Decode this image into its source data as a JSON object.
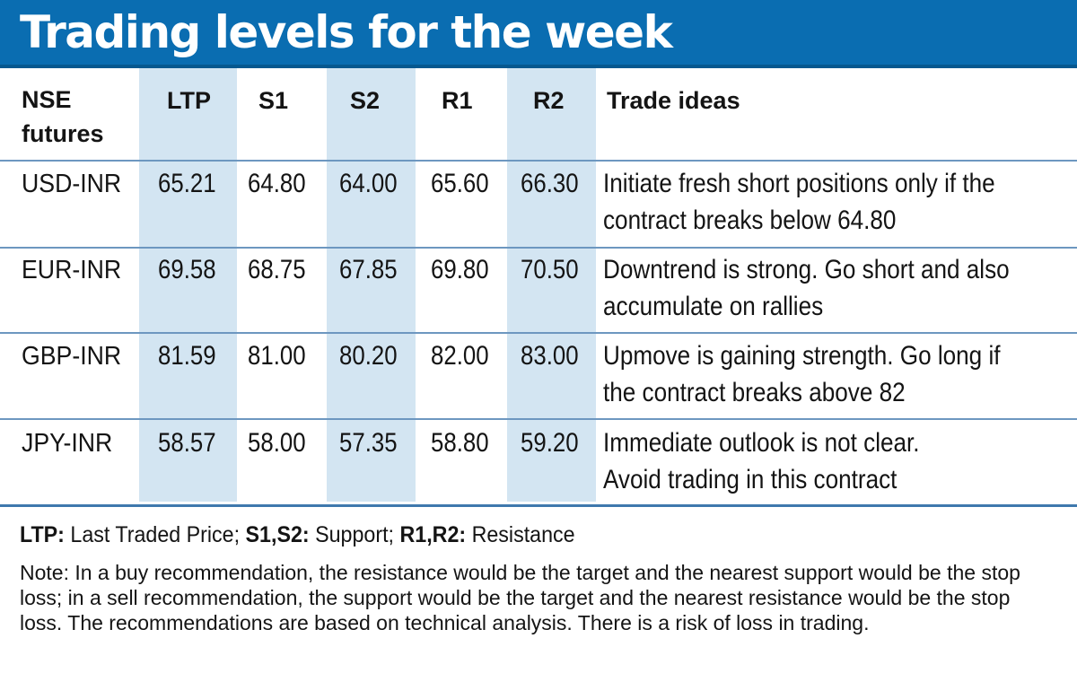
{
  "title": "Trading levels for the week",
  "columns": {
    "instrument": "NSE futures",
    "ltp": "LTP",
    "s1": "S1",
    "s2": "S2",
    "r1": "R1",
    "r2": "R2",
    "ideas": "Trade ideas"
  },
  "rows": [
    {
      "instrument": "USD-INR",
      "ltp": "65.21",
      "s1": "64.80",
      "s2": "64.00",
      "r1": "65.60",
      "r2": "66.30",
      "idea_line1": "Initiate fresh short positions only if the",
      "idea_line2": "contract breaks below 64.80"
    },
    {
      "instrument": "EUR-INR",
      "ltp": "69.58",
      "s1": "68.75",
      "s2": "67.85",
      "r1": "69.80",
      "r2": "70.50",
      "idea_line1": "Downtrend is strong. Go short and also",
      "idea_line2": "accumulate on rallies"
    },
    {
      "instrument": "GBP-INR",
      "ltp": "81.59",
      "s1": "81.00",
      "s2": "80.20",
      "r1": "82.00",
      "r2": "83.00",
      "idea_line1": "Upmove is gaining strength. Go long if",
      "idea_line2": "the contract breaks above 82"
    },
    {
      "instrument": "JPY-INR",
      "ltp": "58.57",
      "s1": "58.00",
      "s2": "57.35",
      "r1": "58.80",
      "r2": "59.20",
      "idea_line1": "Immediate outlook is not clear.",
      "idea_line2": "Avoid trading in this contract"
    }
  ],
  "legend": {
    "ltp_term": "LTP:",
    "ltp_def": "Last Traded Price;",
    "s_term": "S1,S2:",
    "s_def": "Support;",
    "r_term": "R1,R2:",
    "r_def": "Resistance"
  },
  "note": "Note: In a buy recommendation, the resistance would be the target and the nearest support would be the stop loss; in a sell recommendation, the support would be the target and the nearest resistance would be the stop loss. The recommendations are based on technical analysis. There is a risk of loss in trading.",
  "colors": {
    "title_bg": "#0a6db1",
    "column_shade": "#d3e5f2",
    "rule": "#6d97c0"
  }
}
